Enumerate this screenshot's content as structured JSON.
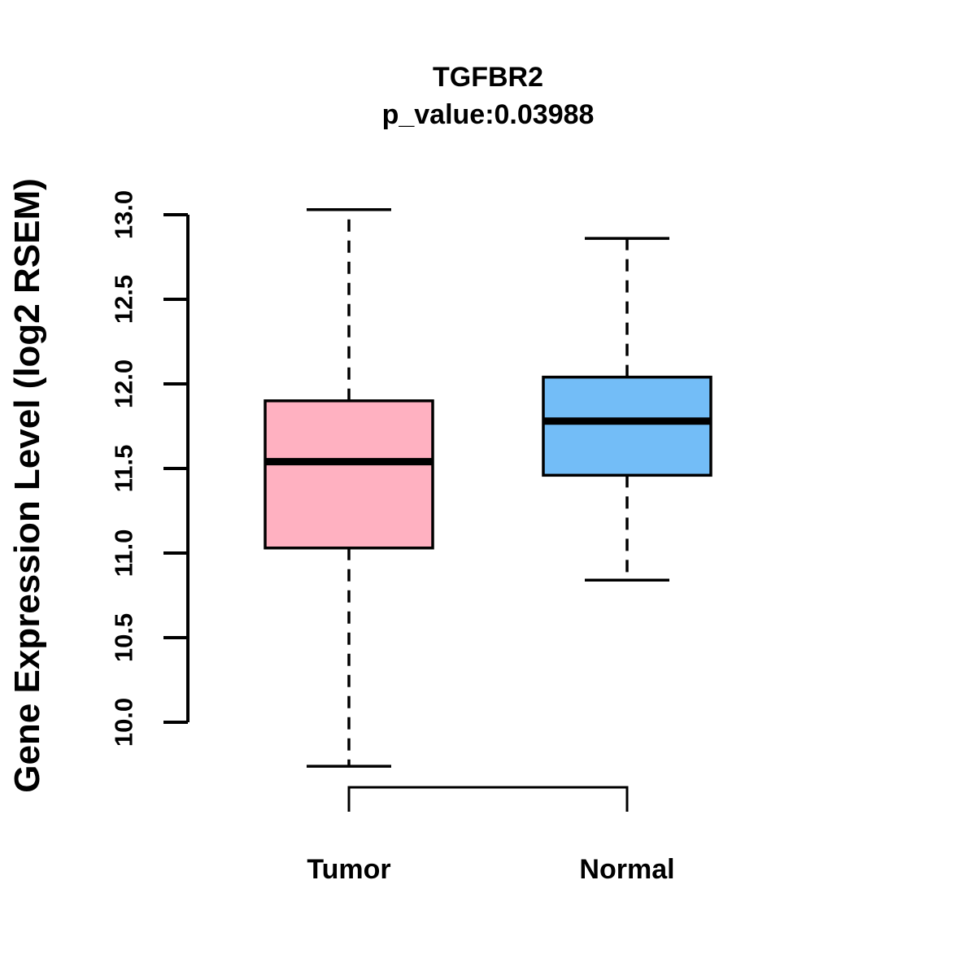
{
  "figure": {
    "title": "TGFBR2",
    "subtitle": "p_value:0.03988",
    "y_axis_label": "Gene Expression Level (log2 RSEM)"
  },
  "chart_data": {
    "type": "box",
    "title": "TGFBR2",
    "subtitle": "p_value:0.03988",
    "xlabel": "",
    "ylabel": "Gene Expression Level (log2 RSEM)",
    "categories": [
      "Tumor",
      "Normal"
    ],
    "ytick_values": [
      10.0,
      10.5,
      11.0,
      11.5,
      12.0,
      12.5,
      13.0
    ],
    "ytick_labels": [
      "10.0",
      "10.5",
      "11.0",
      "11.5",
      "12.0",
      "12.5",
      "13.0"
    ],
    "ylim": [
      9.6,
      13.1
    ],
    "grid": false,
    "legend": "none",
    "series": [
      {
        "name": "Tumor",
        "fill_color": "#FFB1C1",
        "whisker_low": 9.74,
        "q1": 11.03,
        "median": 11.54,
        "q3": 11.9,
        "whisker_high": 13.03
      },
      {
        "name": "Normal",
        "fill_color": "#73BDF7",
        "whisker_low": 10.84,
        "q1": 11.46,
        "median": 11.78,
        "q3": 12.04,
        "whisker_high": 12.86
      }
    ],
    "annotations": {
      "comparison_bracket_between": [
        "Tumor",
        "Normal"
      ]
    }
  },
  "colors": {
    "background": "#FFFFFF",
    "stroke": "#000000",
    "text": "#000000"
  }
}
